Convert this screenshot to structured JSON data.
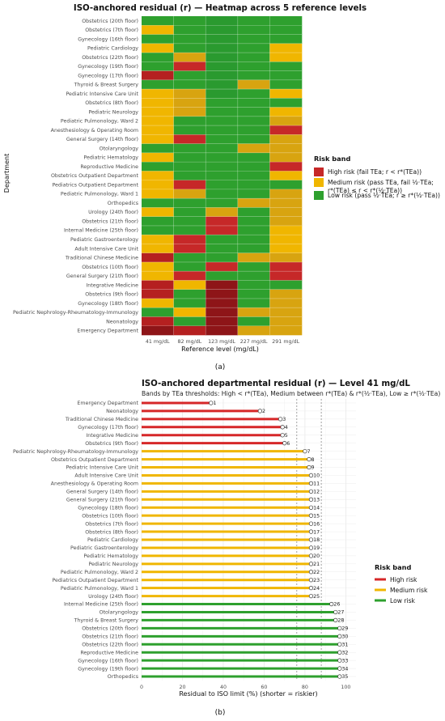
{
  "chart_data": [
    {
      "type": "heatmap",
      "title": "ISO-anchored residual (r) — Heatmap across 5 reference levels",
      "xlabel": "Reference level (mg/dL)",
      "ylabel": "Department",
      "x": [
        "41 mg/dL",
        "82 mg/dL",
        "123 mg/dL",
        "227 mg/dL",
        "291 mg/dL"
      ],
      "y": [
        "Obstetrics (20th floor)",
        "Obstetrics (7th floor)",
        "Gynecology (16th floor)",
        "Pediatric Cardiology",
        "Obstetrics (22th floor)",
        "Gynecology (19th floor)",
        "Gynecology (17th floor)",
        "Thyroid & Breast Surgery",
        "Pediatric Intensive Care Unit",
        "Obstetrics (8th floor)",
        "Pediatric Neurology",
        "Pediatric Pulmonology, Ward 2",
        "Anesthesiology & Operating Room",
        "General Surgery (14th floor)",
        "Otolaryngology",
        "Pediatric Hematology",
        "Reproductive Medicine",
        "Obstetrics Outpatient Department",
        "Pediatrics Outpatient Department",
        "Pediatric Pulmonology, Ward 1",
        "Orthopedics",
        "Urology (24th floor)",
        "Obstetrics (21th floor)",
        "Internal Medicine (25th floor)",
        "Pediatric Gastroenterology",
        "Adult Intensive Care Unit",
        "Traditional Chinese Medicine",
        "Obstetrics (10th floor)",
        "General Surgery (21th floor)",
        "Integrative Medicine",
        "Obstetrics (9th floor)",
        "Gynecology (18th floor)",
        "Pediatric Nephrology-Rheumatology-Immunology",
        "Neonatology",
        "Emergency Department"
      ],
      "values": [
        [
          "L1",
          "L1",
          "L2",
          "L1",
          "L1"
        ],
        [
          "M2",
          "L1",
          "L2",
          "L1",
          "L1"
        ],
        [
          "L1",
          "L1",
          "L2",
          "L1",
          "L1"
        ],
        [
          "M2",
          "L1",
          "L2",
          "L1",
          "M2"
        ],
        [
          "L1",
          "M1",
          "L2",
          "L1",
          "M2"
        ],
        [
          "L1",
          "H1",
          "L2",
          "L1",
          "L1"
        ],
        [
          "H2",
          "L1",
          "L2",
          "L1",
          "L1"
        ],
        [
          "L1",
          "L1",
          "L2",
          "M1",
          "L1"
        ],
        [
          "M2",
          "M1",
          "L2",
          "L1",
          "M2"
        ],
        [
          "M2",
          "M1",
          "L1",
          "L1",
          "L1"
        ],
        [
          "M2",
          "M1",
          "L1",
          "L1",
          "M2"
        ],
        [
          "M2",
          "L1",
          "L1",
          "L1",
          "M1"
        ],
        [
          "M2",
          "L1",
          "L1",
          "L1",
          "H1"
        ],
        [
          "M2",
          "H1",
          "L1",
          "L1",
          "M1"
        ],
        [
          "L1",
          "L1",
          "L1",
          "M1",
          "M1"
        ],
        [
          "M2",
          "L1",
          "L1",
          "L1",
          "M1"
        ],
        [
          "L1",
          "L1",
          "L1",
          "L1",
          "H1"
        ],
        [
          "M2",
          "L1",
          "L1",
          "L1",
          "M2"
        ],
        [
          "M2",
          "H1",
          "L1",
          "L1",
          "L1"
        ],
        [
          "M2",
          "M1",
          "L1",
          "L1",
          "M1"
        ],
        [
          "L1",
          "L1",
          "L1",
          "M1",
          "M1"
        ],
        [
          "M2",
          "L1",
          "M1",
          "L1",
          "M1"
        ],
        [
          "L1",
          "L1",
          "H1",
          "L1",
          "M1"
        ],
        [
          "L1",
          "L1",
          "H1",
          "L1",
          "M2"
        ],
        [
          "M2",
          "H1",
          "L1",
          "L1",
          "M2"
        ],
        [
          "M2",
          "H1",
          "L1",
          "L1",
          "M2"
        ],
        [
          "H2",
          "L1",
          "L1",
          "M1",
          "M1"
        ],
        [
          "M2",
          "L1",
          "H1",
          "L1",
          "H1"
        ],
        [
          "M2",
          "H1",
          "L1",
          "L1",
          "H1"
        ],
        [
          "H2",
          "M2",
          "H3",
          "L1",
          "L1"
        ],
        [
          "H2",
          "L1",
          "H3",
          "L1",
          "M1"
        ],
        [
          "M2",
          "L1",
          "H3",
          "L1",
          "M1"
        ],
        [
          "L1",
          "M2",
          "H3",
          "M1",
          "M1"
        ],
        [
          "H2",
          "L1",
          "H3",
          "L1",
          "M1"
        ],
        [
          "H3",
          "H2",
          "H3",
          "M1",
          "M1"
        ]
      ],
      "legend": {
        "title": "Risk band",
        "position": "right",
        "items": [
          {
            "line1": "High risk (fail TEa; r < r*(TEa))",
            "line2": "",
            "color": "#c62828"
          },
          {
            "line1": "Medium risk (pass TEa, fail ½·TEa;",
            "line2": "r*(TEa) ≤ r < r*(½·TEa))",
            "color": "#f0b600"
          },
          {
            "line1": "Low risk (pass ½·TEa; r ≥ r*(½·TEa))",
            "line2": "",
            "color": "#2ea02e"
          }
        ]
      },
      "shade_colors": {
        "L1": "#2ea02e",
        "L2": "#2a9a2f",
        "M1": "#d8a410",
        "M2": "#f0b600",
        "H1": "#c62828",
        "H2": "#b52020",
        "H3": "#8e1518"
      },
      "grid": false,
      "panel_label": "(a)"
    },
    {
      "type": "lollipop",
      "title": "ISO-anchored departmental residual (r) — Level 41 mg/dL",
      "subtitle": "Bands by TEa thresholds: High < r*(TEa), Medium between r*(TEa) & r*(½·TEa), Low ≥ r*(½·TEa)",
      "xlabel": "Residual to ISO limit (%)  (shorter = riskier)",
      "ylabel": "",
      "xlim": [
        0,
        105
      ],
      "xticks": [
        "0",
        "20",
        "40",
        "60",
        "80",
        "100"
      ],
      "xtick_values": [
        0,
        20,
        40,
        60,
        80,
        100
      ],
      "thresholds": [
        76,
        88
      ],
      "categories": [
        "Emergency Department",
        "Neonatology",
        "Traditional Chinese Medicine",
        "Gynecology (17th floor)",
        "Integrative Medicine",
        "Obstetrics (9th floor)",
        "Pediatric Nephrology-Rheumatology-Immunology",
        "Obstetrics Outpatient Department",
        "Pediatric Intensive Care Unit",
        "Adult Intensive Care Unit",
        "Anesthesiology & Operating Room",
        "General Surgery (14th floor)",
        "General Surgery (21th floor)",
        "Gynecology (18th floor)",
        "Obstetrics (10th floor)",
        "Obstetrics (7th floor)",
        "Obstetrics (8th floor)",
        "Pediatric Cardiology",
        "Pediatric Gastroenterology",
        "Pediatric Hematology",
        "Pediatric Neurology",
        "Pediatric Pulmonology, Ward 2",
        "Pediatrics Outpatient Department",
        "Pediatric Pulmonology, Ward 1",
        "Urology (24th floor)",
        "Internal Medicine (25th floor)",
        "Otolaryngology",
        "Thyroid & Breast Surgery",
        "Obstetrics (20th floor)",
        "Obstetrics (21th floor)",
        "Obstetrics (22th floor)",
        "Reproductive Medicine",
        "Gynecology (16th floor)",
        "Gynecology (19th floor)",
        "Orthopedics"
      ],
      "values": [
        34,
        58,
        68,
        69,
        69,
        70,
        80,
        82,
        82,
        83,
        83,
        83,
        83,
        83,
        83,
        83,
        83,
        83,
        83,
        83,
        83,
        83,
        83,
        83,
        83,
        93,
        95,
        95,
        97,
        97,
        97,
        97,
        97,
        97,
        97
      ],
      "ranks": [
        "1",
        "2",
        "3",
        "4",
        "5",
        "6",
        "7",
        "8",
        "9",
        "10",
        "11",
        "12",
        "13",
        "14",
        "15",
        "16",
        "17",
        "18",
        "19",
        "20",
        "21",
        "22",
        "23",
        "24",
        "25",
        "26",
        "27",
        "28",
        "29",
        "30",
        "31",
        "32",
        "33",
        "34",
        "35"
      ],
      "bands": [
        "H",
        "H",
        "H",
        "H",
        "H",
        "H",
        "M",
        "M",
        "M",
        "M",
        "M",
        "M",
        "M",
        "M",
        "M",
        "M",
        "M",
        "M",
        "M",
        "M",
        "M",
        "M",
        "M",
        "M",
        "M",
        "L",
        "L",
        "L",
        "L",
        "L",
        "L",
        "L",
        "L",
        "L",
        "L"
      ],
      "legend": {
        "title": "Risk band",
        "position": "right",
        "items": [
          {
            "label": "High risk",
            "color": "#d62728"
          },
          {
            "label": "Medium risk",
            "color": "#f0b600"
          },
          {
            "label": "Low risk",
            "color": "#2ea02e"
          }
        ]
      },
      "grid": true,
      "panel_label": "(b)"
    }
  ]
}
